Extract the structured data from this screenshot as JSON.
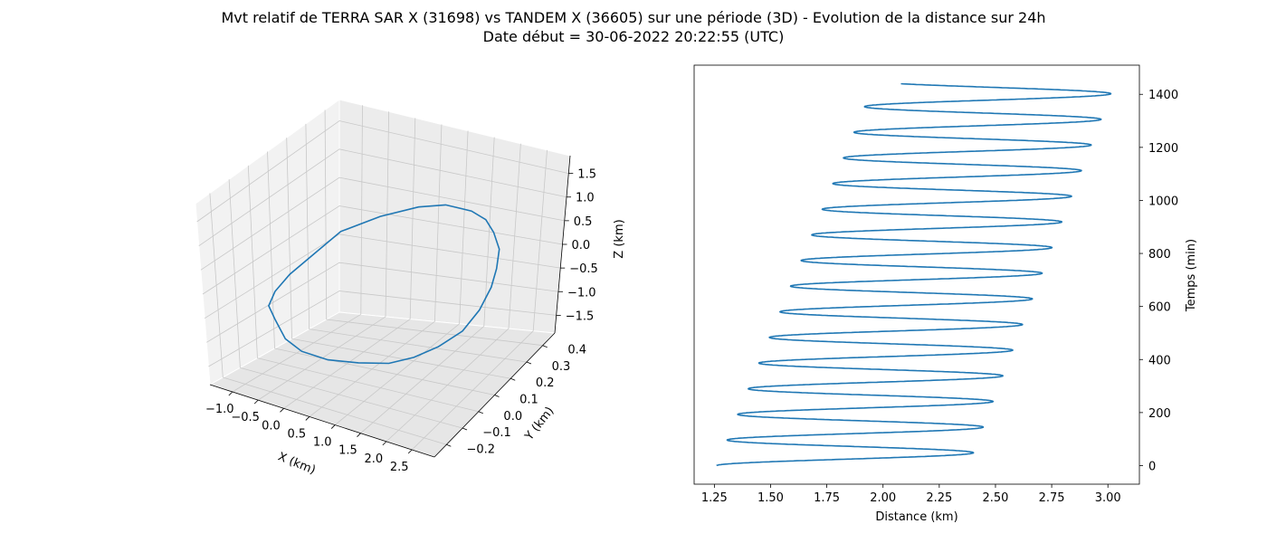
{
  "figure": {
    "title_line1": "Mvt relatif de TERRA SAR X (31698) vs TANDEM X (36605) sur une période (3D) - Evolution de la distance sur 24h",
    "title_line2": "Date début = 30-06-2022 20:22:55 (UTC)"
  },
  "chart_data": [
    {
      "type": "line3d",
      "xlabel": "X (km)",
      "ylabel": "Y (km)",
      "zlabel": "Z (km)",
      "xticks": [
        "−1.0",
        "−0.5",
        "0.0",
        "0.5",
        "1.0",
        "1.5",
        "2.0",
        "2.5"
      ],
      "yticks": [
        "−0.2",
        "−0.1",
        "0.0",
        "0.1",
        "0.2",
        "0.3",
        "0.4"
      ],
      "zticks": [
        "1.5",
        "1.0",
        "0.5",
        "0.0",
        "−0.5",
        "−1.0",
        "−1.5"
      ],
      "xlim": [
        -1.3,
        2.6
      ],
      "ylim": [
        -0.25,
        0.45
      ],
      "zlim": [
        -1.8,
        1.8
      ],
      "grid": true,
      "series": [
        {
          "color": "#1f77b4",
          "x": [
            -1.2,
            -1.1,
            -0.9,
            -0.5,
            0.0,
            0.5,
            0.9,
            1.3,
            1.7,
            2.0,
            2.2,
            2.3,
            2.35,
            2.3,
            2.2,
            2.0,
            1.6,
            1.2,
            0.6,
            0.0,
            -0.4,
            -0.8,
            -1.05,
            -1.2,
            -1.2
          ],
          "y": [
            0.05,
            0.07,
            0.1,
            0.13,
            0.16,
            0.19,
            0.22,
            0.25,
            0.28,
            0.3,
            0.32,
            0.33,
            0.34,
            0.33,
            0.32,
            0.3,
            0.27,
            0.23,
            0.18,
            0.12,
            0.08,
            0.04,
            0.02,
            0.02,
            0.05
          ],
          "z": [
            -1.1,
            -1.5,
            -1.75,
            -1.85,
            -1.8,
            -1.7,
            -1.5,
            -1.2,
            -0.8,
            -0.3,
            0.2,
            0.6,
            1.0,
            1.35,
            1.6,
            1.75,
            1.8,
            1.7,
            1.4,
            1.0,
            0.5,
            0.0,
            -0.4,
            -0.75,
            -1.1
          ]
        }
      ]
    },
    {
      "type": "line",
      "xlabel": "Distance (km)",
      "ylabel": "Temps (min)",
      "xticks": [
        "1.25",
        "1.50",
        "1.75",
        "2.00",
        "2.25",
        "2.50",
        "2.75",
        "3.00"
      ],
      "yticks": [
        "0",
        "200",
        "400",
        "600",
        "800",
        "1000",
        "1200",
        "1400"
      ],
      "xlim": [
        1.16,
        3.14
      ],
      "ylim": [
        -70,
        1510
      ],
      "yaxis_side": "right",
      "grid": false,
      "oscillation": {
        "period_min": 96.7,
        "min_distance_start": 1.26,
        "min_distance_end": 1.96,
        "max_distance_start": 2.38,
        "max_distance_end": 3.03,
        "t_start": 0,
        "t_end": 1440,
        "end_distance": 2.08
      },
      "series": [
        {
          "color": "#1f77b4"
        }
      ]
    }
  ]
}
